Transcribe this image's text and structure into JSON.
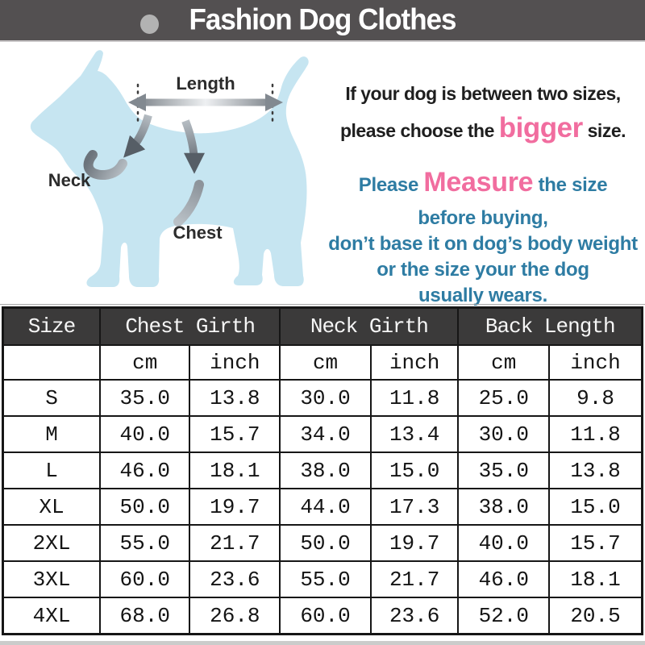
{
  "header": {
    "title": "Fashion Dog Clothes"
  },
  "diagram": {
    "length_label": "Length",
    "neck_label": "Neck",
    "chest_label": "Chest"
  },
  "notes": {
    "line1": "If your dog is between two sizes,",
    "line2_pre": "please choose the ",
    "line2_highlight": "bigger",
    "line2_post": " size.",
    "line3_pre": "Please ",
    "line3_highlight": "Measure",
    "line3_post": " the size",
    "line4": "before buying,",
    "line5": "don’t base it on dog’s body weight",
    "line6": "or the size your the dog",
    "line7": "usually wears."
  },
  "colors": {
    "accent_pink": "#f16d9f",
    "note_teal": "#2e7ca3",
    "dog_blue": "#c6e5f1",
    "header_bar": "#535051",
    "table_header_bg": "#3b3a3a"
  },
  "chart_data": {
    "type": "table",
    "column_groups": [
      "Size",
      "Chest Girth",
      "Neck Girth",
      "Back Length"
    ],
    "unit_headers": [
      "cm",
      "inch",
      "cm",
      "inch",
      "cm",
      "inch"
    ],
    "rows": [
      [
        "S",
        "35.0",
        "13.8",
        "30.0",
        "11.8",
        "25.0",
        "9.8"
      ],
      [
        "M",
        "40.0",
        "15.7",
        "34.0",
        "13.4",
        "30.0",
        "11.8"
      ],
      [
        "L",
        "46.0",
        "18.1",
        "38.0",
        "15.0",
        "35.0",
        "13.8"
      ],
      [
        "XL",
        "50.0",
        "19.7",
        "44.0",
        "17.3",
        "38.0",
        "15.0"
      ],
      [
        "2XL",
        "55.0",
        "21.7",
        "50.0",
        "19.7",
        "40.0",
        "15.7"
      ],
      [
        "3XL",
        "60.0",
        "23.6",
        "55.0",
        "21.7",
        "46.0",
        "18.1"
      ],
      [
        "4XL",
        "68.0",
        "26.8",
        "60.0",
        "23.6",
        "52.0",
        "20.5"
      ]
    ]
  }
}
